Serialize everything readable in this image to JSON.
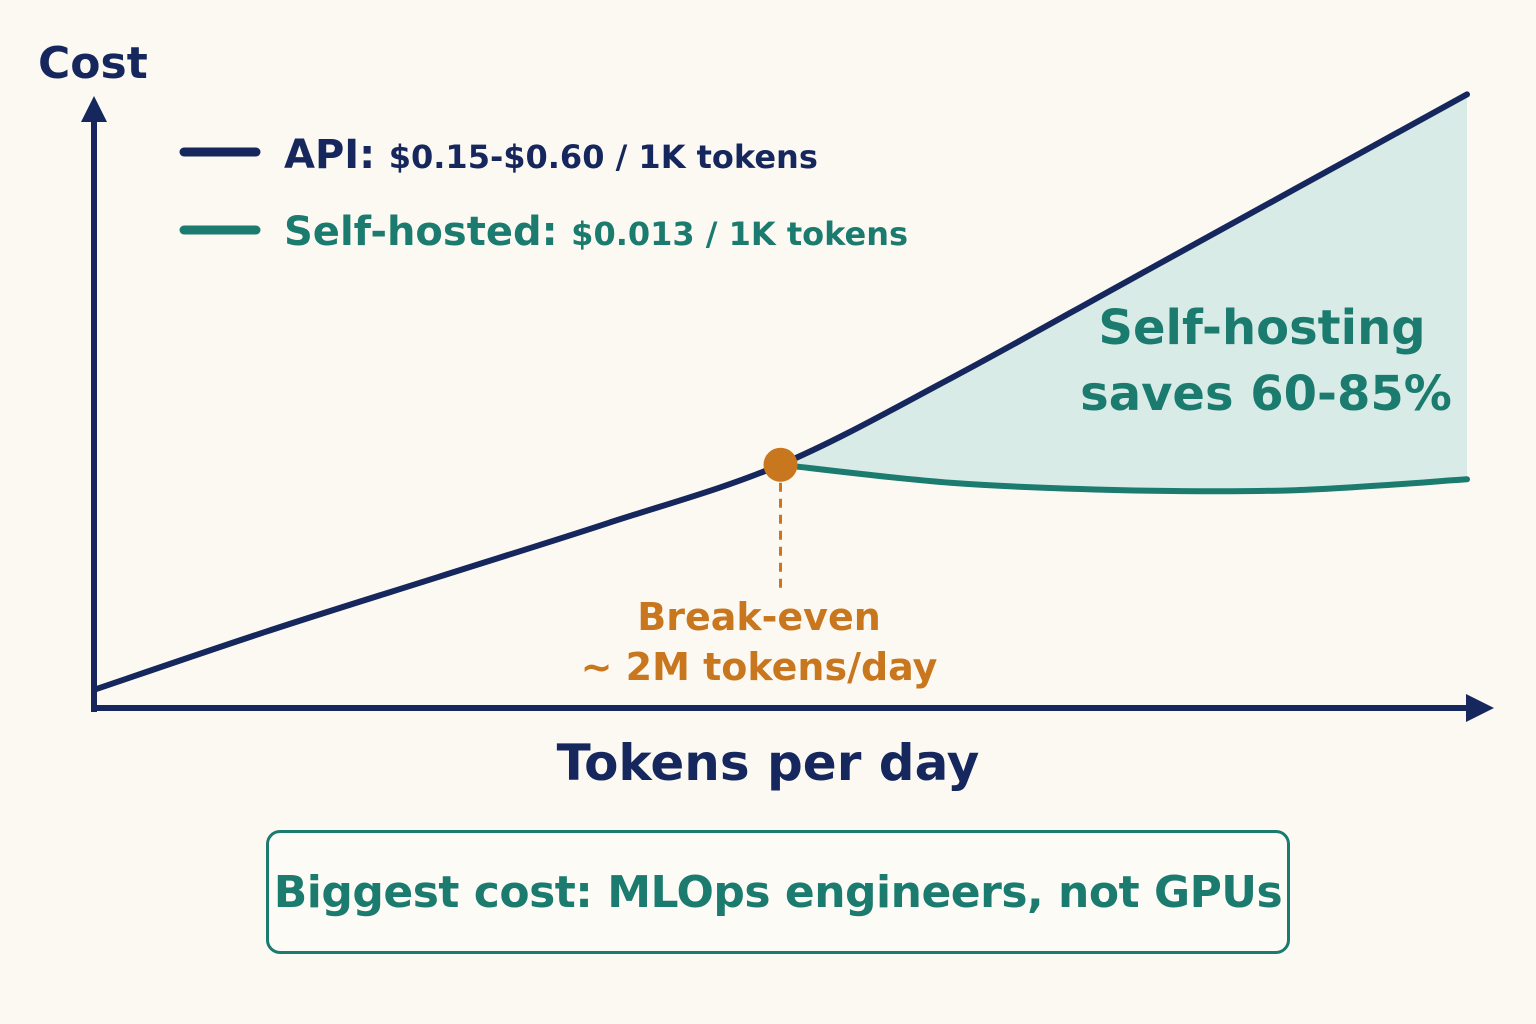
{
  "chart_data": {
    "type": "line",
    "ylabel": "Cost",
    "xlabel": "Tokens per day",
    "x": [
      0,
      0.5,
      1,
      1.5,
      2,
      2.5,
      3,
      3.5,
      4
    ],
    "series": [
      {
        "name": "API",
        "legend_label": "API:",
        "legend_detail": "$0.15-$0.60 / 1K tokens",
        "color": "#15275c",
        "values": [
          0.0,
          0.16,
          0.31,
          0.46,
          0.62,
          0.86,
          1.12,
          1.38,
          1.64
        ]
      },
      {
        "name": "Self-hosted",
        "legend_label": "Self-hosted:",
        "legend_detail": "$0.013 / 1K tokens",
        "color": "#1a7b6e",
        "start_x": 2,
        "values": [
          null,
          null,
          null,
          null,
          0.62,
          0.57,
          0.55,
          0.55,
          0.58
        ]
      }
    ],
    "xlim": [
      0,
      4.3
    ],
    "ylim": [
      -0.05,
      1.9
    ],
    "grid": false,
    "legend_position": "top-left",
    "breakeven": {
      "x": 2,
      "y": 0.62,
      "color": "#c9771e",
      "label_line1": "Break-even",
      "label_line2": "~ 2M tokens/day"
    },
    "savings_region": {
      "fill": "#d8ebe6",
      "text_color": "#1a7b6e",
      "label_line1": "Self-hosting",
      "label_line2": "saves 60-85%"
    }
  },
  "note": {
    "text": "Biggest cost: MLOps engineers, not GPUs"
  },
  "colors": {
    "background": "#fcf9f3",
    "axis": "#15275c",
    "accent": "#1a7b6e",
    "highlight": "#c9771e"
  }
}
